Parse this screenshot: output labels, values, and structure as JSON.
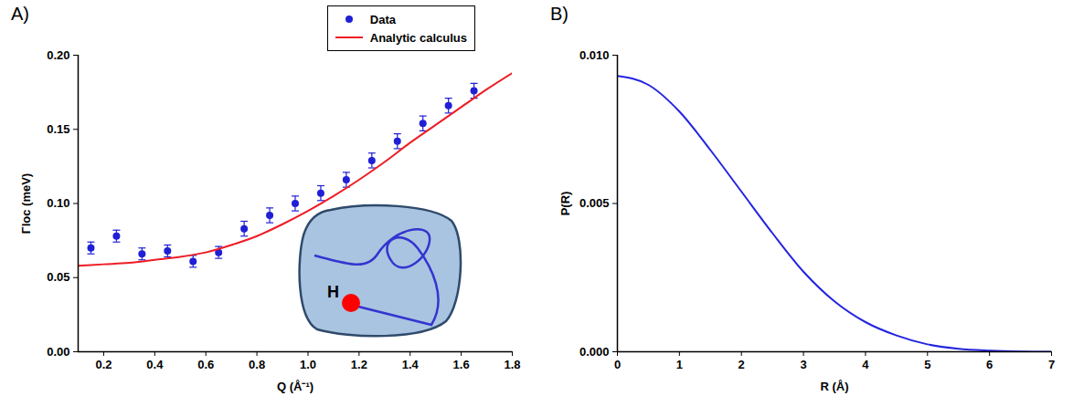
{
  "chart_data": [
    {
      "type": "scatter",
      "panel_label": "A)",
      "xlabel": "Q (Å⁻¹)",
      "ylabel": "Γloc (meV)",
      "xlim": [
        0.1,
        1.8
      ],
      "ylim": [
        0,
        0.2
      ],
      "xticks": [
        0.2,
        0.4,
        0.6,
        0.8,
        {
          "value": 1,
          "label": "1.0"
        },
        1.2,
        1.4,
        1.6,
        1.8
      ],
      "yticks": [
        {
          "value": 0,
          "label": "0.00"
        },
        0.05,
        {
          "value": 0.1,
          "label": "0.10"
        },
        0.15,
        {
          "value": 0.2,
          "label": "0.20"
        }
      ],
      "legend": "top-right",
      "inset_label": "H",
      "series": [
        {
          "name": "Data",
          "type": "scatter",
          "marker": "circle",
          "color": "#1f1fd6",
          "x": [
            0.15,
            0.25,
            0.35,
            0.45,
            0.55,
            0.65,
            0.75,
            0.85,
            0.95,
            1.05,
            1.15,
            1.25,
            1.35,
            1.45,
            1.55,
            1.65
          ],
          "values": [
            0.07,
            0.078,
            0.066,
            0.068,
            0.061,
            0.067,
            0.083,
            0.092,
            0.1,
            0.107,
            0.116,
            0.129,
            0.142,
            0.154,
            0.166,
            0.176
          ],
          "errors": [
            0.004,
            0.004,
            0.004,
            0.004,
            0.004,
            0.004,
            0.005,
            0.005,
            0.005,
            0.005,
            0.005,
            0.005,
            0.005,
            0.005,
            0.005,
            0.005
          ]
        },
        {
          "name": "Analytic calculus",
          "type": "line",
          "color": "#ee1c24",
          "x": [
            0.1,
            0.2,
            0.3,
            0.4,
            0.5,
            0.6,
            0.7,
            0.8,
            0.9,
            1.0,
            1.1,
            1.2,
            1.3,
            1.4,
            1.5,
            1.6,
            1.7,
            1.8
          ],
          "values": [
            0.058,
            0.059,
            0.06,
            0.062,
            0.064,
            0.067,
            0.072,
            0.078,
            0.086,
            0.095,
            0.105,
            0.116,
            0.128,
            0.141,
            0.153,
            0.165,
            0.177,
            0.188
          ]
        }
      ]
    },
    {
      "type": "line",
      "panel_label": "B)",
      "xlabel": "R (Å)",
      "ylabel": "P(R)",
      "xlim": [
        0,
        7
      ],
      "ylim": [
        0,
        0.01
      ],
      "xticks": [
        0,
        1,
        2,
        3,
        4,
        5,
        6,
        7
      ],
      "yticks": [
        {
          "value": 0,
          "label": "0.000"
        },
        0.005,
        {
          "value": 0.01,
          "label": "0.010"
        }
      ],
      "series": [
        {
          "type": "line",
          "color": "#2424e0",
          "x": [
            0,
            0.5,
            1,
            1.5,
            2,
            2.5,
            3,
            3.5,
            4,
            4.5,
            5,
            5.5,
            6,
            6.5,
            7
          ],
          "values": [
            0.0093,
            0.009,
            0.0081,
            0.0068,
            0.0054,
            0.004,
            0.0027,
            0.0017,
            0.001,
            0.00055,
            0.00025,
            0.0001,
            4e-05,
            1e-05,
            0
          ]
        }
      ]
    }
  ]
}
